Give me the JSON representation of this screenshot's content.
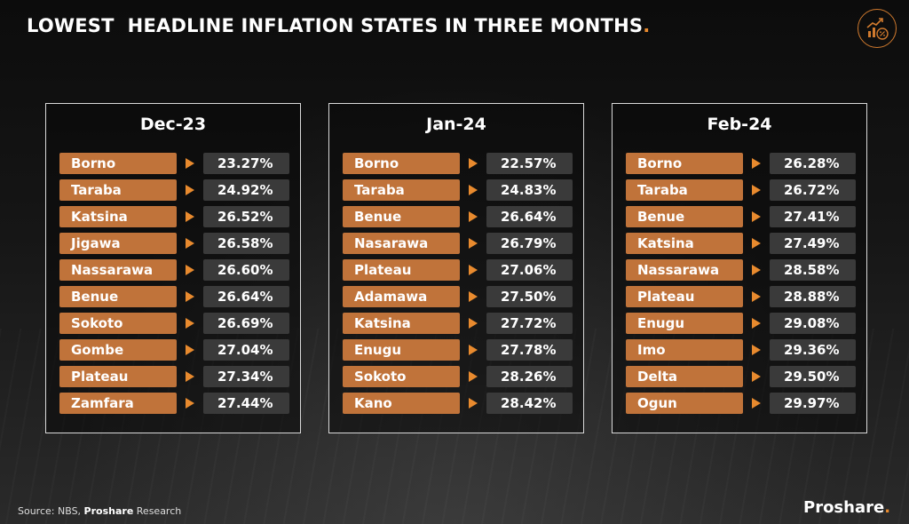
{
  "header": {
    "title": "LOWEST  HEADLINE INFLATION STATES IN THREE MONTHS",
    "title_dot": "."
  },
  "colors": {
    "accent": "#e88a2e",
    "state_box": "#c0733a",
    "value_box": "#3a3a3a",
    "border": "#d9d9d9"
  },
  "icons": {
    "logo": "chart-percent-icon",
    "row_marker": "triangle-right-icon"
  },
  "chart_data": {
    "type": "table",
    "unit": "%",
    "panels": [
      {
        "period": "Dec-23",
        "states": [
          "Borno",
          "Taraba",
          "Katsina",
          "Jigawa",
          "Nassarawa",
          "Benue",
          "Sokoto",
          "Gombe",
          "Plateau",
          "Zamfara"
        ],
        "values": [
          23.27,
          24.92,
          26.52,
          26.58,
          26.6,
          26.64,
          26.69,
          27.04,
          27.34,
          27.44
        ],
        "labels": [
          "23.27%",
          "24.92%",
          "26.52%",
          "26.58%",
          "26.60%",
          "26.64%",
          "26.69%",
          "27.04%",
          "27.34%",
          "27.44%"
        ]
      },
      {
        "period": "Jan-24",
        "states": [
          "Borno",
          "Taraba",
          "Benue",
          "Nasarawa",
          "Plateau",
          "Adamawa",
          "Katsina",
          "Enugu",
          "Sokoto",
          "Kano"
        ],
        "values": [
          22.57,
          24.83,
          26.64,
          26.79,
          27.06,
          27.5,
          27.72,
          27.78,
          28.26,
          28.42
        ],
        "labels": [
          "22.57%",
          "24.83%",
          "26.64%",
          "26.79%",
          "27.06%",
          "27.50%",
          "27.72%",
          "27.78%",
          "28.26%",
          "28.42%"
        ]
      },
      {
        "period": "Feb-24",
        "states": [
          "Borno",
          "Taraba",
          "Benue",
          "Katsina",
          "Nassarawa",
          "Plateau",
          "Enugu",
          "Imo",
          "Delta",
          "Ogun"
        ],
        "values": [
          26.28,
          26.72,
          27.41,
          27.49,
          28.58,
          28.88,
          29.08,
          29.36,
          29.5,
          29.97
        ],
        "labels": [
          "26.28%",
          "26.72%",
          "27.41%",
          "27.49%",
          "28.58%",
          "28.88%",
          "29.08%",
          "29.36%",
          "29.50%",
          "29.97%"
        ]
      }
    ]
  },
  "footer": {
    "source_prefix": "Source: NBS, ",
    "source_bold": "Proshare",
    "source_suffix": " Research",
    "brand": "Proshare",
    "brand_dot": "."
  }
}
